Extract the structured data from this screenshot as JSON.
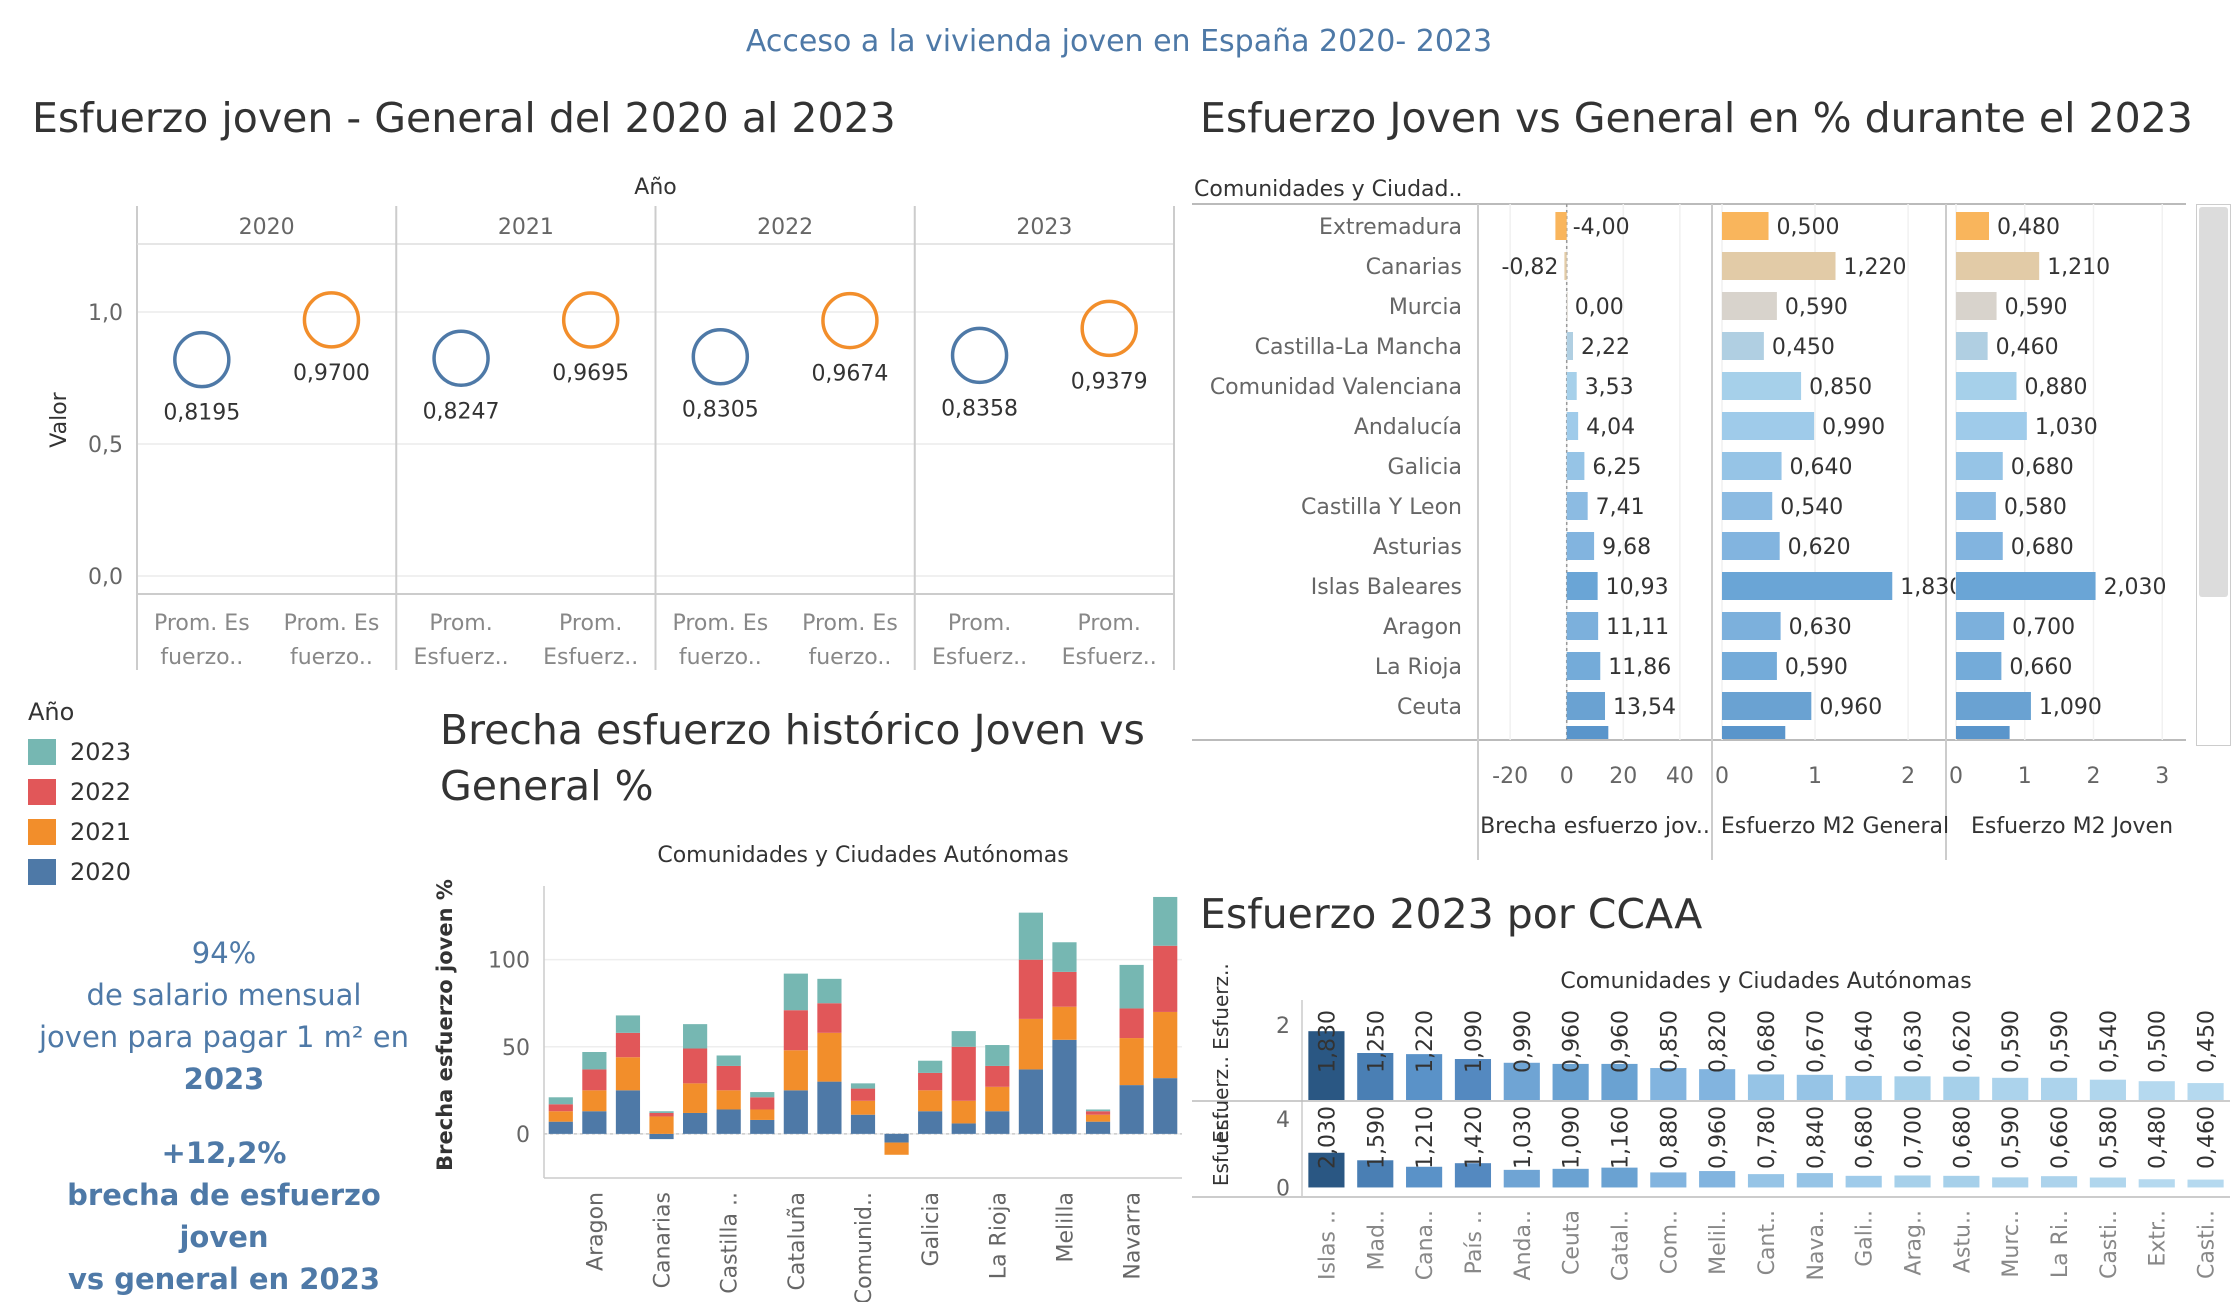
{
  "main_title": "Acceso a la vivienda joven en España 2020- 2023",
  "section_titles": {
    "esfuerzo_general": "Esfuerzo joven - General  del 2020 al 2023",
    "joven_vs_general": "Esfuerzo Joven vs General en % durante el 2023",
    "brecha_line1": "Brecha esfuerzo histórico Joven vs",
    "brecha_line2": "General %",
    "ccaa_2023": "Esfuerzo  2023 por CCAA"
  },
  "legend": {
    "title": "Año",
    "items": [
      {
        "label": "2023",
        "color": "#76b7b2"
      },
      {
        "label": "2022",
        "color": "#e15759"
      },
      {
        "label": "2021",
        "color": "#f28e2b"
      },
      {
        "label": "2020",
        "color": "#4e79a7"
      }
    ]
  },
  "kpis": {
    "k1_value": "94%",
    "k1_line1": "de salario mensual",
    "k1_line2": "joven para pagar 1 m² en",
    "k1_line3": "2023",
    "k2_value": "+12,2%",
    "k2_line1": "brecha de esfuerzo joven",
    "k2_line2": "vs general en 2023"
  },
  "chart_data": [
    {
      "type": "scatter",
      "column_header": "Año",
      "ylabel": "Valor",
      "ylim": [
        0,
        1.25
      ],
      "yticks": [
        "1,0",
        "0,5",
        "0,0"
      ],
      "years": [
        "2020",
        "2021",
        "2022",
        "2023"
      ],
      "category_labels": [
        [
          "Prom. Es",
          "fuerzo.."
        ],
        [
          "Prom. Es",
          "fuerzo.."
        ],
        [
          "Prom.",
          "Esfuerz.."
        ],
        [
          "Prom.",
          "Esfuerz.."
        ],
        [
          "Prom. Es",
          "fuerzo.."
        ],
        [
          "Prom. Es",
          "fuerzo.."
        ],
        [
          "Prom.",
          "Esfuerz.."
        ],
        [
          "Prom.",
          "Esfuerz.."
        ]
      ],
      "series": [
        {
          "color": "#4e79a7",
          "values": [
            0.8195,
            0.8247,
            0.8305,
            0.8358
          ],
          "labels": [
            "0,8195",
            "0,8247",
            "0,8305",
            "0,8358"
          ]
        },
        {
          "color": "#f28e2b",
          "values": [
            0.97,
            0.9695,
            0.9674,
            0.9379
          ],
          "labels": [
            "0,9700",
            "0,9695",
            "0,9674",
            "0,9379"
          ]
        }
      ]
    },
    {
      "type": "bar",
      "orientation": "horizontal",
      "row_header": "Comunidades y Ciudad..",
      "categories": [
        "Extremadura",
        "Canarias",
        "Murcia",
        "Castilla-La Mancha",
        "Comunidad Valenciana",
        "Andalucía",
        "Galicia",
        "Castilla Y Leon",
        "Asturias",
        "Islas Baleares",
        "Aragon",
        "La Rioja",
        "Ceuta"
      ],
      "colors": [
        "#f9b55c",
        "#e2cba7",
        "#d8d3cc",
        "#b0cfe2",
        "#a6d0ea",
        "#9fcbea",
        "#96c4e6",
        "#8cbbe2",
        "#82b4df",
        "#6aa5d6",
        "#7cb0dc",
        "#74abd9",
        "#6aa2d2"
      ],
      "partial_row_color": "#5a95cb",
      "panels": [
        {
          "xlabel": "Brecha esfuerzo jov..",
          "xlim": [
            -25,
            45
          ],
          "ticks": [
            "-20",
            "0",
            "20",
            "40"
          ],
          "tick_values": [
            -20,
            0,
            20,
            40
          ],
          "values": [
            -4.0,
            -0.82,
            0.0,
            2.22,
            3.53,
            4.04,
            6.25,
            7.41,
            9.68,
            10.93,
            11.11,
            11.86,
            13.54
          ],
          "labels": [
            "-4,00",
            "-0,82",
            "0,00",
            "2,22",
            "3,53",
            "4,04",
            "6,25",
            "7,41",
            "9,68",
            "10,93",
            "11,11",
            "11,86",
            "13,54"
          ],
          "partial_value": 14.71
        },
        {
          "xlabel": "Esfuerzo M2 General",
          "xlim": [
            0,
            2.3
          ],
          "ticks": [
            "0",
            "1",
            "2"
          ],
          "tick_values": [
            0,
            1,
            2
          ],
          "values": [
            0.5,
            1.22,
            0.59,
            0.45,
            0.85,
            0.99,
            0.64,
            0.54,
            0.62,
            1.83,
            0.63,
            0.59,
            0.96
          ],
          "labels": [
            "0,500",
            "1,220",
            "0,590",
            "0,450",
            "0,850",
            "0,990",
            "0,640",
            "0,540",
            "0,620",
            "1,830",
            "0,630",
            "0,590",
            "0,960"
          ],
          "partial_value": 0.68
        },
        {
          "xlabel": "Esfuerzo M2 Joven",
          "xlim": [
            0,
            3.2
          ],
          "ticks": [
            "0",
            "1",
            "2",
            "3"
          ],
          "tick_values": [
            0,
            1,
            2,
            3
          ],
          "values": [
            0.48,
            1.21,
            0.59,
            0.46,
            0.88,
            1.03,
            0.68,
            0.58,
            0.68,
            2.03,
            0.7,
            0.66,
            1.09
          ],
          "labels": [
            "0,480",
            "1,210",
            "0,590",
            "0,460",
            "0,880",
            "1,030",
            "0,680",
            "0,580",
            "0,680",
            "2,030",
            "0,700",
            "0,660",
            "1,090"
          ],
          "partial_value": 0.78
        }
      ]
    },
    {
      "type": "bar",
      "stacked": true,
      "title": "Comunidades y Ciudades Autónomas",
      "ylabel": "Brecha esfuerzo joven %",
      "ylim": [
        -15,
        140
      ],
      "yticks": [
        0,
        50,
        100
      ],
      "ytick_labels": [
        "0",
        "50",
        "100"
      ],
      "xlabels": [
        {
          "index": 1,
          "text": "Aragon"
        },
        {
          "index": 3,
          "text": "Canarias"
        },
        {
          "index": 5,
          "text": "Castilla .."
        },
        {
          "index": 7,
          "text": "Cataluña"
        },
        {
          "index": 9,
          "text": "Comunid.."
        },
        {
          "index": 11,
          "text": "Galicia"
        },
        {
          "index": 13,
          "text": "La Rioja"
        },
        {
          "index": 15,
          "text": "Melilla"
        },
        {
          "index": 17,
          "text": "Navarra"
        }
      ],
      "series": [
        {
          "name": "2020",
          "color": "#4e79a7",
          "values": [
            7,
            13,
            25,
            -3,
            12,
            14,
            8,
            25,
            30,
            11,
            -5,
            13,
            6,
            13,
            37,
            54,
            7,
            28,
            32
          ]
        },
        {
          "name": "2021",
          "color": "#f28e2b",
          "values": [
            6,
            12,
            19,
            10,
            17,
            11,
            6,
            23,
            28,
            8,
            -7,
            12,
            13,
            14,
            29,
            19,
            4,
            27,
            38
          ]
        },
        {
          "name": "2022",
          "color": "#e15759",
          "values": [
            4,
            12,
            14,
            2,
            20,
            14,
            7,
            23,
            17,
            7,
            0,
            10,
            31,
            12,
            34,
            20,
            2,
            17,
            38
          ]
        },
        {
          "name": "2023",
          "color": "#76b7b2",
          "values": [
            4,
            10,
            10,
            1,
            14,
            6,
            3,
            21,
            14,
            3,
            0,
            7,
            9,
            12,
            27,
            17,
            1,
            25,
            28
          ]
        }
      ]
    },
    {
      "type": "bar",
      "title": "Comunidades y Ciudades Autónomas",
      "categories": [
        "Islas ..",
        "Mad..",
        "Cana..",
        "País ..",
        "Anda..",
        "Ceuta",
        "Catal..",
        "Com..",
        "Melil..",
        "Cant..",
        "Nava..",
        "Gali..",
        "Arag..",
        "Astu..",
        "Murc..",
        "La Ri..",
        "Casti..",
        "Extr..",
        "Casti.."
      ],
      "colors": [
        "#2a5783",
        "#4a7fb4",
        "#5a92c8",
        "#5489c0",
        "#6fa4d4",
        "#6aa2d2",
        "#6aa2d2",
        "#82b4df",
        "#82b4df",
        "#96c4e6",
        "#96c4e6",
        "#9fcbea",
        "#a6d0ea",
        "#a6d0ea",
        "#acd3ec",
        "#acd3ec",
        "#b0d6ed",
        "#b5d9ef",
        "#b5d9ef"
      ],
      "panels": [
        {
          "ylabel": "Esfuerz.. Esfuerz..",
          "ylim": [
            0,
            2.5
          ],
          "yticks": [
            2
          ],
          "ytick_labels": [
            "2"
          ],
          "values": [
            1.83,
            1.25,
            1.22,
            1.09,
            0.99,
            0.96,
            0.96,
            0.85,
            0.82,
            0.68,
            0.67,
            0.64,
            0.63,
            0.62,
            0.59,
            0.59,
            0.54,
            0.5,
            0.45
          ],
          "labels": [
            "1,830",
            "1,250",
            "1,220",
            "1,090",
            "0,990",
            "0,960",
            "0,960",
            "0,850",
            "0,820",
            "0,680",
            "0,670",
            "0,640",
            "0,630",
            "0,620",
            "0,590",
            "0,590",
            "0,540",
            "0,500",
            "0,450"
          ]
        },
        {
          "ylabel": "Esfuer..",
          "ylim": [
            -0.5,
            5
          ],
          "yticks": [
            4,
            0
          ],
          "ytick_labels": [
            "4",
            "0"
          ],
          "values": [
            2.03,
            1.59,
            1.21,
            1.42,
            1.03,
            1.09,
            1.16,
            0.88,
            0.96,
            0.78,
            0.84,
            0.68,
            0.7,
            0.68,
            0.59,
            0.66,
            0.58,
            0.48,
            0.46
          ],
          "labels": [
            "2,030",
            "1,590",
            "1,210",
            "1,420",
            "1,030",
            "1,090",
            "1,160",
            "0,880",
            "0,960",
            "0,780",
            "0,840",
            "0,680",
            "0,700",
            "0,680",
            "0,590",
            "0,660",
            "0,580",
            "0,480",
            "0,460"
          ]
        }
      ]
    }
  ]
}
